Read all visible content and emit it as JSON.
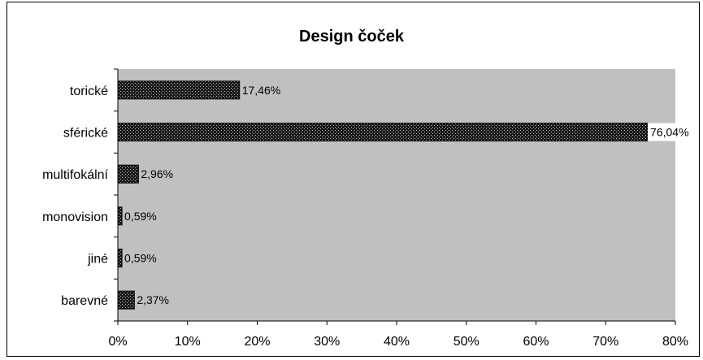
{
  "chart_data": {
    "type": "bar",
    "orientation": "horizontal",
    "title": "Design čoček",
    "categories": [
      "torické",
      "sférické",
      "multifokální",
      "monovision",
      "jiné",
      "barevné"
    ],
    "values": [
      17.46,
      76.04,
      2.96,
      0.59,
      0.59,
      2.37
    ],
    "value_labels": [
      "17,46%",
      "76,04%",
      "2,96%",
      "0,59%",
      "0,59%",
      "2,37%"
    ],
    "xlim": [
      0,
      80
    ],
    "x_ticks": [
      0,
      10,
      20,
      30,
      40,
      50,
      60,
      70,
      80
    ],
    "x_tick_labels": [
      "0%",
      "10%",
      "20%",
      "30%",
      "40%",
      "50%",
      "60%",
      "70%",
      "80%"
    ],
    "xlabel": "",
    "ylabel": "",
    "grid": false,
    "legend": "none",
    "colors": {
      "plot_background": "#c0c0c0",
      "bar_fill": "#1a1a1a",
      "bar_dots": "#bdbdbd",
      "label_background": "#ffffff"
    }
  }
}
